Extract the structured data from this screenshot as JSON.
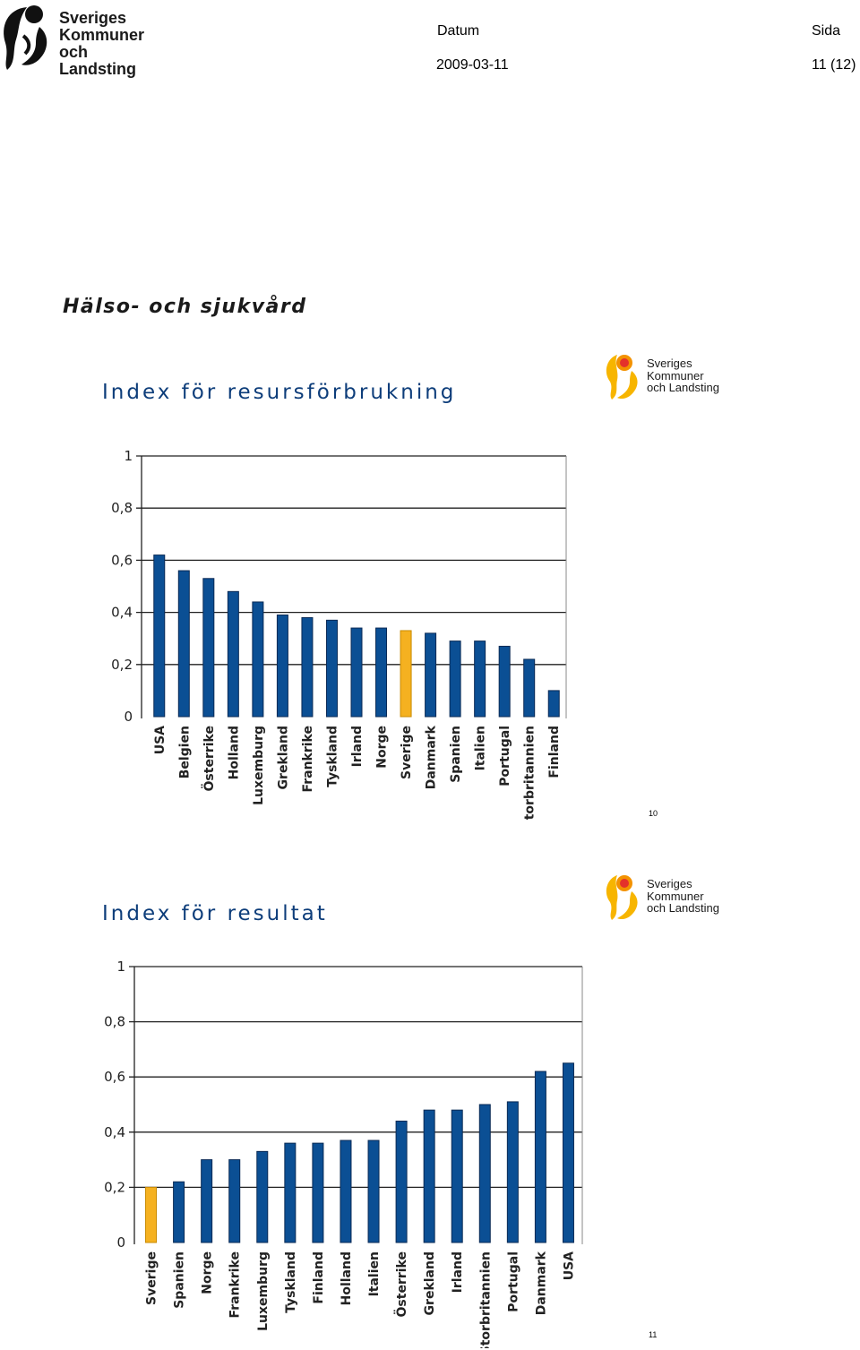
{
  "header": {
    "logo_lines": [
      "Sveriges",
      "Kommuner",
      "och Landsting"
    ],
    "datum_label": "Datum",
    "datum_value": "2009-03-11",
    "sida_label": "Sida",
    "sida_value": "11 (12)"
  },
  "section_title": "Hälso- och sjukvård",
  "slides": [
    {
      "title": "Index för resursförbrukning",
      "logo_lines": [
        "Sveriges",
        "Kommuner",
        "och Landsting"
      ],
      "page_number": "10"
    },
    {
      "title": "Index för resultat",
      "logo_lines": [
        "Sveriges",
        "Kommuner",
        "och Landsting"
      ],
      "page_number": "11"
    }
  ],
  "chart_data": [
    {
      "type": "bar",
      "categories": [
        "USA",
        "Belgien",
        "Österrike",
        "Holland",
        "Luxemburg",
        "Grekland",
        "Frankrike",
        "Tyskland",
        "Irland",
        "Norge",
        "Sverige",
        "Danmark",
        "Spanien",
        "Italien",
        "Portugal",
        "Storbritannien",
        "Finland"
      ],
      "values": [
        0.62,
        0.56,
        0.53,
        0.48,
        0.44,
        0.39,
        0.38,
        0.37,
        0.34,
        0.34,
        0.33,
        0.32,
        0.29,
        0.29,
        0.27,
        0.22,
        0.1
      ],
      "highlight": "Sverige",
      "ylim": [
        0,
        1
      ],
      "yticks": [
        "0",
        "0,2",
        "0,4",
        "0,6",
        "0,8",
        "1"
      ],
      "grid": true,
      "colors": {
        "bar": "#0b4f94",
        "highlight": "#f5b120",
        "bar_edge": "#0a2a55"
      }
    },
    {
      "type": "bar",
      "categories": [
        "Sverige",
        "Spanien",
        "Norge",
        "Frankrike",
        "Luxemburg",
        "Tyskland",
        "Finland",
        "Holland",
        "Italien",
        "Österrike",
        "Grekland",
        "Irland",
        "Storbritannien",
        "Portugal",
        "Danmark",
        "USA"
      ],
      "values": [
        0.2,
        0.22,
        0.3,
        0.3,
        0.33,
        0.36,
        0.36,
        0.37,
        0.37,
        0.44,
        0.48,
        0.48,
        0.5,
        0.51,
        0.62,
        0.65
      ],
      "highlight": "Sverige",
      "ylim": [
        0,
        1
      ],
      "yticks": [
        "0",
        "0,2",
        "0,4",
        "0,6",
        "0,8",
        "1"
      ],
      "grid": true,
      "colors": {
        "bar": "#0b4f94",
        "highlight": "#f5b120",
        "bar_edge": "#0a2a55"
      }
    }
  ]
}
